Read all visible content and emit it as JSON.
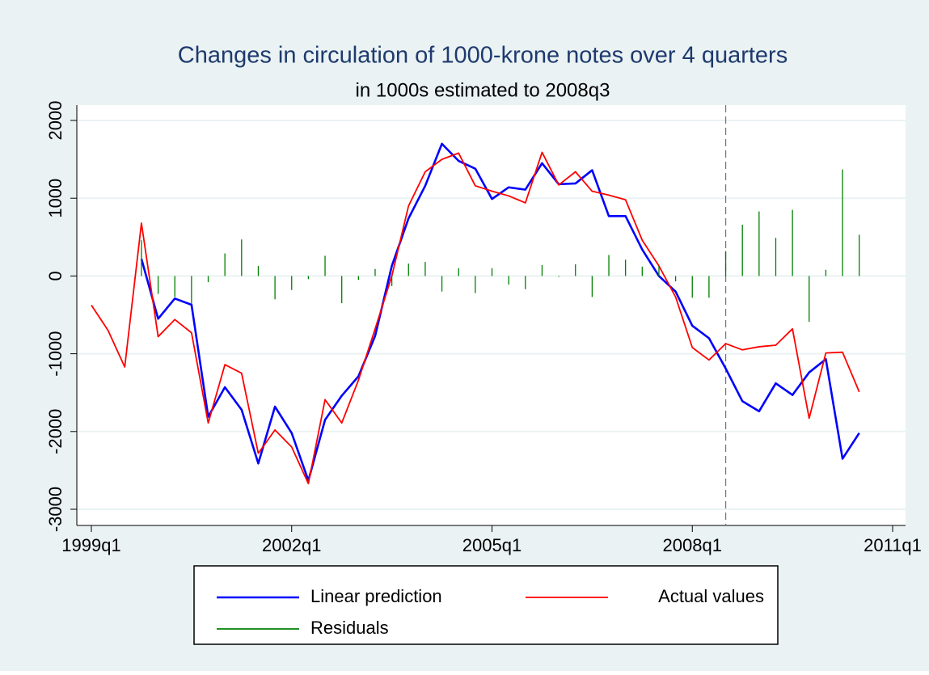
{
  "chart_data": {
    "type": "line",
    "title": "Changes in circulation of 1000-krone notes over 4 quarters",
    "subtitle": "in 1000s estimated to 2008q3",
    "categories": [
      "1999q1",
      "1999q2",
      "1999q3",
      "1999q4",
      "2000q1",
      "2000q2",
      "2000q3",
      "2000q4",
      "2001q1",
      "2001q2",
      "2001q3",
      "2001q4",
      "2002q1",
      "2002q2",
      "2002q3",
      "2002q4",
      "2003q1",
      "2003q2",
      "2003q3",
      "2003q4",
      "2004q1",
      "2004q2",
      "2004q3",
      "2004q4",
      "2005q1",
      "2005q2",
      "2005q3",
      "2005q4",
      "2006q1",
      "2006q2",
      "2006q3",
      "2006q4",
      "2007q1",
      "2007q2",
      "2007q3",
      "2007q4",
      "2008q1",
      "2008q2",
      "2008q3",
      "2008q4",
      "2009q1",
      "2009q2",
      "2009q3",
      "2009q4",
      "2010q1",
      "2010q2",
      "2010q3"
    ],
    "series": [
      {
        "name": "Linear prediction",
        "color": "#0000ff",
        "style": "line",
        "values": [
          null,
          null,
          null,
          220,
          -550,
          -290,
          -370,
          -1810,
          -1430,
          -1720,
          -2410,
          -1680,
          -2020,
          -2630,
          -1850,
          -1540,
          -1290,
          -770,
          130,
          740,
          1160,
          1700,
          1480,
          1380,
          990,
          1140,
          1110,
          1450,
          1180,
          1190,
          1360,
          770,
          770,
          340,
          0,
          -200,
          -640,
          -800,
          -1190,
          -1610,
          -1740,
          -1380,
          -1530,
          -1240,
          -1070,
          -2350,
          -2020
        ]
      },
      {
        "name": "Actual values",
        "color": "#ff0000",
        "style": "line",
        "values": [
          -375,
          -700,
          -1170,
          680,
          -780,
          -560,
          -730,
          -1890,
          -1140,
          -1250,
          -2280,
          -1980,
          -2200,
          -2670,
          -1590,
          -1890,
          -1340,
          -680,
          0,
          900,
          1340,
          1500,
          1580,
          1160,
          1090,
          1030,
          940,
          1590,
          1170,
          1340,
          1090,
          1040,
          980,
          460,
          130,
          -270,
          -920,
          -1080,
          -870,
          -950,
          -910,
          -890,
          -680,
          -1830,
          -990,
          -980,
          -1490
        ]
      },
      {
        "name": "Residuals",
        "color": "#008000",
        "style": "spike",
        "values": [
          null,
          null,
          null,
          460,
          -230,
          -270,
          -360,
          -80,
          290,
          470,
          130,
          -300,
          -180,
          -40,
          260,
          -350,
          -50,
          90,
          -130,
          160,
          180,
          -200,
          100,
          -220,
          100,
          -110,
          -170,
          140,
          -10,
          150,
          -270,
          270,
          210,
          120,
          130,
          -70,
          -280,
          -280,
          320,
          660,
          830,
          490,
          850,
          -590,
          80,
          1370,
          530
        ]
      }
    ],
    "reference_line": "2008q3",
    "xlim": [
      "1999q1",
      "2011q1"
    ],
    "xticks": [
      "1999q1",
      "2002q1",
      "2005q1",
      "2008q1",
      "2011q1"
    ],
    "ylim": [
      -3000,
      2000
    ],
    "yticks": [
      -3000,
      -2000,
      -1000,
      0,
      1000,
      2000
    ],
    "grid": true
  }
}
